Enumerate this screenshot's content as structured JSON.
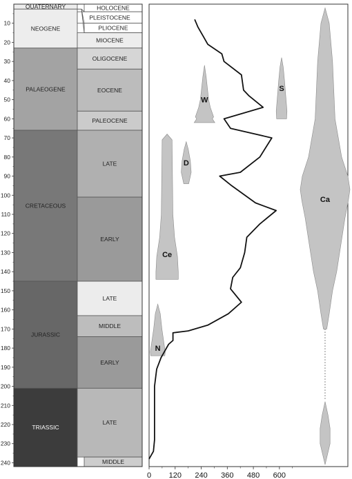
{
  "y_axis": {
    "min": 0,
    "max": 240,
    "ticks": [
      10,
      20,
      30,
      40,
      50,
      60,
      70,
      80,
      90,
      100,
      110,
      120,
      130,
      140,
      150,
      160,
      170,
      180,
      190,
      200,
      210,
      220,
      230,
      240
    ]
  },
  "periods": [
    {
      "name": "QUATERNARY",
      "start": 0,
      "end": 2.6,
      "color": "#ededed",
      "dark": false
    },
    {
      "name": "NEOGENE",
      "start": 2.6,
      "end": 23,
      "color": "#ededed",
      "dark": false
    },
    {
      "name": "PALAEOGENE",
      "start": 23,
      "end": 66,
      "color": "#a3a3a3",
      "dark": false
    },
    {
      "name": "CRETACEOUS",
      "start": 66,
      "end": 145,
      "color": "#787878",
      "dark": false
    },
    {
      "name": "JURASSIC",
      "start": 145,
      "end": 201,
      "color": "#676767",
      "dark": false
    },
    {
      "name": "TRIASSIC",
      "start": 201,
      "end": 252,
      "color": "#3c3c3c",
      "dark": true
    }
  ],
  "epochs": [
    {
      "name": "HOLOCENE",
      "start": 0,
      "end": 4,
      "color": "#ffffff"
    },
    {
      "name": "PLEISTOCENE",
      "start": 4,
      "end": 10,
      "color": "#ffffff"
    },
    {
      "name": "PLIOCENE",
      "start": 10,
      "end": 15,
      "color": "#ffffff"
    },
    {
      "name": "MIOCENE",
      "start": 15,
      "end": 23,
      "color": "#ededed"
    },
    {
      "name": "OLIGOCENE",
      "start": 23,
      "end": 34,
      "color": "#d6d6d6"
    },
    {
      "name": "EOCENE",
      "start": 34,
      "end": 56,
      "color": "#bcbcbc"
    },
    {
      "name": "PALEOCENE",
      "start": 56,
      "end": 66,
      "color": "#cbcbcb"
    },
    {
      "name": "LATE",
      "start": 66,
      "end": 101,
      "color": "#b0b0b0"
    },
    {
      "name": "EARLY",
      "start": 101,
      "end": 145,
      "color": "#9a9a9a"
    },
    {
      "name": "LATE",
      "start": 145,
      "end": 163,
      "color": "#ececec"
    },
    {
      "name": "MIDDLE",
      "start": 163,
      "end": 174,
      "color": "#bdbdbd"
    },
    {
      "name": "EARLY",
      "start": 174,
      "end": 201,
      "color": "#9a9a9a"
    },
    {
      "name": "LATE",
      "start": 201,
      "end": 237,
      "color": "#b8b8b8"
    },
    {
      "name": "MIDDLE",
      "start": 237,
      "end": 247,
      "color": "#cdcdcd"
    }
  ],
  "x_axis": {
    "min": 0,
    "max": 915,
    "ticks": [
      0,
      120,
      240,
      360,
      480,
      600
    ],
    "tick_labels": [
      "0",
      "120",
      "240",
      "360",
      "480",
      "600"
    ]
  },
  "curve": [
    [
      210,
      8
    ],
    [
      225,
      12
    ],
    [
      250,
      17
    ],
    [
      270,
      21
    ],
    [
      335,
      26
    ],
    [
      345,
      30
    ],
    [
      425,
      37
    ],
    [
      435,
      45
    ],
    [
      460,
      48
    ],
    [
      525,
      54
    ],
    [
      345,
      60
    ],
    [
      375,
      65
    ],
    [
      565,
      70
    ],
    [
      510,
      80
    ],
    [
      420,
      88
    ],
    [
      325,
      90
    ],
    [
      380,
      95
    ],
    [
      490,
      104
    ],
    [
      585,
      108
    ],
    [
      510,
      115
    ],
    [
      450,
      122
    ],
    [
      440,
      130
    ],
    [
      420,
      138
    ],
    [
      385,
      143
    ],
    [
      375,
      149
    ],
    [
      425,
      156
    ],
    [
      365,
      162
    ],
    [
      270,
      168
    ],
    [
      180,
      171
    ],
    [
      110,
      172
    ],
    [
      110,
      176
    ],
    [
      90,
      178
    ],
    [
      55,
      185
    ],
    [
      35,
      191
    ],
    [
      25,
      200
    ],
    [
      25,
      210
    ],
    [
      25,
      220
    ],
    [
      25,
      228
    ],
    [
      20,
      234
    ],
    [
      0,
      238
    ]
  ],
  "taxa": [
    {
      "label": "W",
      "label_y": 50,
      "label_x": 255,
      "profile": [
        [
          32,
          0
        ],
        [
          38,
          4
        ],
        [
          44,
          7
        ],
        [
          50,
          10
        ],
        [
          54,
          14
        ],
        [
          59,
          22
        ],
        [
          60,
          19
        ],
        [
          62,
          25
        ]
      ]
    },
    {
      "label": "S",
      "label_y": 44,
      "label_x": 610,
      "profile": [
        [
          28,
          0
        ],
        [
          33,
          4
        ],
        [
          40,
          7
        ],
        [
          48,
          10
        ],
        [
          56,
          13
        ],
        [
          60,
          12
        ]
      ]
    },
    {
      "label": "D",
      "label_y": 83,
      "label_x": 171,
      "profile": [
        [
          72,
          0
        ],
        [
          76,
          5
        ],
        [
          82,
          10
        ],
        [
          88,
          12
        ],
        [
          94,
          6
        ]
      ]
    },
    {
      "label": "Ce",
      "label_y": 131,
      "label_x": 83,
      "profile": [
        [
          68,
          0
        ],
        [
          71,
          12
        ],
        [
          110,
          14
        ],
        [
          122,
          18
        ],
        [
          132,
          25
        ],
        [
          140,
          27
        ],
        [
          144,
          27
        ]
      ]
    },
    {
      "label": "N",
      "label_y": 180,
      "label_x": 40,
      "profile": [
        [
          157,
          0
        ],
        [
          162,
          6
        ],
        [
          170,
          10
        ],
        [
          176,
          14
        ],
        [
          182,
          18
        ],
        [
          184,
          17
        ]
      ]
    },
    {
      "label": "Ca",
      "label_y": 102,
      "label_x": 810,
      "profile": [
        [
          2,
          0
        ],
        [
          10,
          10
        ],
        [
          30,
          18
        ],
        [
          60,
          24
        ],
        [
          80,
          40
        ],
        [
          90,
          55
        ],
        [
          97,
          60
        ],
        [
          103,
          56
        ],
        [
          112,
          48
        ],
        [
          126,
          38
        ],
        [
          140,
          28
        ],
        [
          150,
          18
        ],
        [
          162,
          10
        ],
        [
          170,
          4
        ]
      ],
      "tail": {
        "start": 170,
        "end": 207
      },
      "lower": [
        [
          208,
          0
        ],
        [
          215,
          7
        ],
        [
          222,
          12
        ],
        [
          230,
          12
        ],
        [
          241,
          0
        ]
      ]
    }
  ]
}
